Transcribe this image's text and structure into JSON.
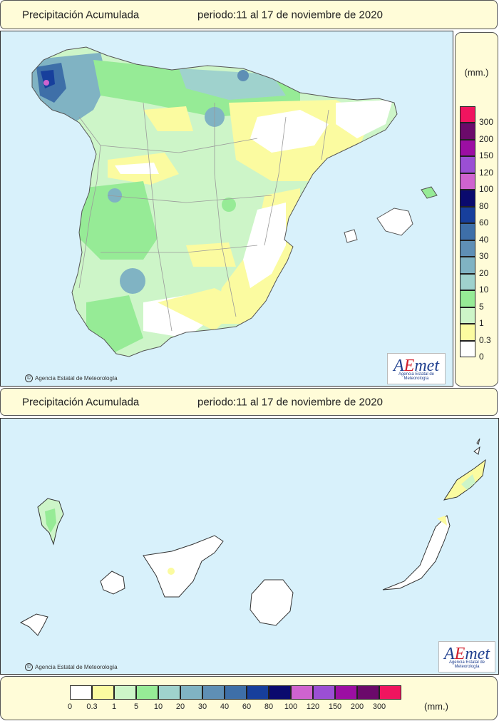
{
  "peninsula": {
    "title": "Precipitación Acumulada",
    "period": "periodo:11 al 17 de noviembre de 2020",
    "credit": "Agencia Estatal de Meteorología",
    "logo_brand_a": "A",
    "logo_brand_e": "E",
    "logo_brand_rest": "met",
    "logo_sub": "Agencia Estatal de Meteorología"
  },
  "canarias": {
    "title": "Precipitación Acumulada",
    "period": "periodo:11 al 17 de noviembre de 2020",
    "credit": "Agencia Estatal de Meteorología",
    "logo_brand_a": "A",
    "logo_brand_e": "E",
    "logo_brand_rest": "met",
    "logo_sub": "Agencia Estatal de Meteorología"
  },
  "legend": {
    "unit": "(mm.)",
    "bins": [
      {
        "label": "0",
        "color": "#ffffff"
      },
      {
        "label": "0.3",
        "color": "#fbfba0"
      },
      {
        "label": "1",
        "color": "#cdf5c8"
      },
      {
        "label": "5",
        "color": "#96eb96"
      },
      {
        "label": "10",
        "color": "#9fd2cd"
      },
      {
        "label": "20",
        "color": "#80b3c3"
      },
      {
        "label": "30",
        "color": "#5f8fb5"
      },
      {
        "label": "40",
        "color": "#3e6fa8"
      },
      {
        "label": "60",
        "color": "#173f9c"
      },
      {
        "label": "80",
        "color": "#0a0a6e"
      },
      {
        "label": "100",
        "color": "#cf63cf"
      },
      {
        "label": "120",
        "color": "#9b4fd4"
      },
      {
        "label": "150",
        "color": "#9c0ea3"
      },
      {
        "label": "200",
        "color": "#6b0a6b"
      },
      {
        "label": "300",
        "color": "#f0145f"
      }
    ]
  },
  "colors": {
    "sea": "#d8f1fb",
    "panel": "#fffcd8",
    "border_lines": "#9a9a9a"
  }
}
